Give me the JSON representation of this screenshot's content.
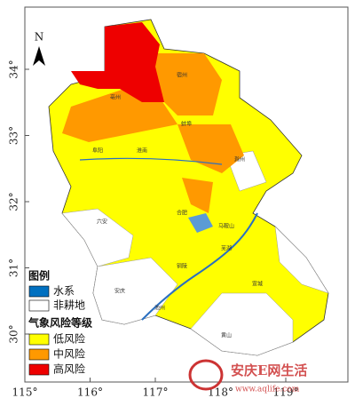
{
  "map": {
    "north": "N",
    "lat_labels": [
      "34°",
      "33°",
      "32°",
      "31°",
      "30°"
    ],
    "lon_labels": [
      "115°",
      "116°",
      "117°",
      "118°",
      "119°"
    ],
    "cities": [
      "宿州",
      "亳州",
      "蚌埠",
      "阜阳",
      "淮南",
      "滁州",
      "六安",
      "合肥",
      "马鞍山",
      "芜湖",
      "铜陵",
      "宣城",
      "安庆",
      "池州",
      "黄山"
    ],
    "legend": {
      "title": "图例",
      "water": "水系",
      "non_farmland": "非耕地",
      "risk_title": "气象风险等级",
      "low": "低风险",
      "mid": "中风险",
      "high": "高风险"
    },
    "watermark": {
      "name": "安庆E网生活",
      "url": "www.aqlife.com"
    }
  }
}
